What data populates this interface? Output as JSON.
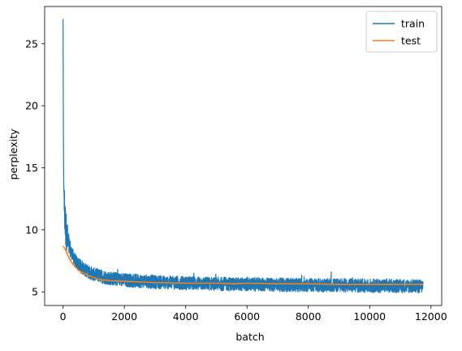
{
  "chart_data": {
    "type": "line",
    "xlabel": "batch",
    "ylabel": "perplexity",
    "xlim": [
      -600,
      12350
    ],
    "ylim": [
      3.9,
      28.0
    ],
    "xticks": [
      0,
      2000,
      4000,
      6000,
      8000,
      10000,
      12000
    ],
    "yticks": [
      5,
      10,
      15,
      20,
      25
    ],
    "legend": {
      "position": "top-right"
    },
    "series": [
      {
        "name": "train",
        "color": "#1f77b4",
        "x_range": [
          0,
          11750
        ],
        "points": [
          [
            0,
            27.0
          ],
          [
            10,
            19.0
          ],
          [
            20,
            14.0
          ],
          [
            40,
            12.2
          ],
          [
            60,
            11.0
          ],
          [
            80,
            10.3
          ],
          [
            120,
            9.5
          ],
          [
            160,
            9.0
          ],
          [
            200,
            8.6
          ],
          [
            300,
            8.0
          ],
          [
            400,
            7.5
          ],
          [
            500,
            7.2
          ],
          [
            700,
            6.8
          ],
          [
            1000,
            6.4
          ],
          [
            1500,
            6.1
          ],
          [
            2000,
            5.95
          ],
          [
            3000,
            5.8
          ],
          [
            4000,
            5.7
          ],
          [
            6000,
            5.6
          ],
          [
            8000,
            5.55
          ],
          [
            10000,
            5.5
          ],
          [
            11750,
            5.45
          ]
        ],
        "noise_band_half_width": 0.55
      },
      {
        "name": "test",
        "color": "#ff7f0e",
        "points": [
          [
            0,
            8.7
          ],
          [
            100,
            8.3
          ],
          [
            200,
            7.7
          ],
          [
            300,
            7.3
          ],
          [
            400,
            7.0
          ],
          [
            500,
            6.75
          ],
          [
            600,
            6.6
          ],
          [
            800,
            6.35
          ],
          [
            1000,
            6.15
          ],
          [
            1200,
            6.0
          ],
          [
            1500,
            5.9
          ],
          [
            2000,
            5.85
          ],
          [
            2500,
            5.8
          ],
          [
            3000,
            5.75
          ],
          [
            4000,
            5.7
          ],
          [
            5000,
            5.7
          ],
          [
            5600,
            5.65
          ],
          [
            6000,
            5.7
          ],
          [
            7000,
            5.65
          ],
          [
            8000,
            5.65
          ],
          [
            9000,
            5.6
          ],
          [
            10000,
            5.6
          ],
          [
            11000,
            5.6
          ],
          [
            11750,
            5.6
          ]
        ]
      }
    ]
  }
}
